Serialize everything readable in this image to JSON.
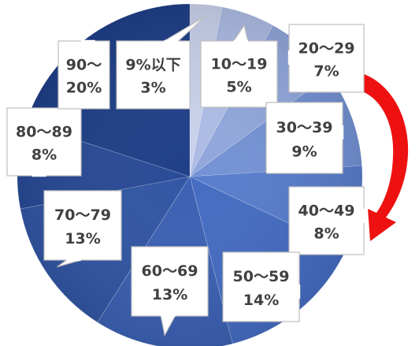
{
  "chart_data": {
    "type": "pie",
    "title": "",
    "legend": "none",
    "slices": [
      {
        "label": "9%以下",
        "value": 3,
        "value_label": "3%"
      },
      {
        "label": "10〜19",
        "value": 5,
        "value_label": "5%"
      },
      {
        "label": "20〜29",
        "value": 7,
        "value_label": "7%"
      },
      {
        "label": "30〜39",
        "value": 9,
        "value_label": "9%"
      },
      {
        "label": "40〜49",
        "value": 8,
        "value_label": "8%"
      },
      {
        "label": "50〜59",
        "value": 14,
        "value_label": "14%"
      },
      {
        "label": "60〜69",
        "value": 13,
        "value_label": "13%"
      },
      {
        "label": "70〜79",
        "value": 13,
        "value_label": "13%"
      },
      {
        "label": "80〜89",
        "value": 8,
        "value_label": "8%"
      },
      {
        "label": "90〜",
        "value": 20,
        "value_label": "20%"
      }
    ],
    "colors": {
      "light": "#c9d1ec",
      "mid": "#4a72c8",
      "dark": "#1f3f88",
      "accent_arrow": "#ee1111"
    }
  }
}
